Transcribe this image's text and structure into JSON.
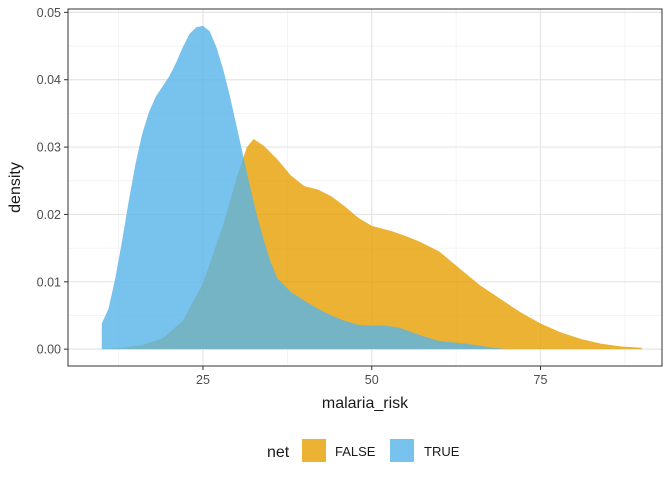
{
  "chart_data": {
    "type": "area",
    "subtype": "density",
    "xlabel": "malaria_risk",
    "ylabel": "density",
    "xlim": [
      5,
      93
    ],
    "ylim": [
      -0.0025,
      0.0505
    ],
    "x_ticks": [
      25,
      50,
      75
    ],
    "y_ticks": [
      0.0,
      0.01,
      0.02,
      0.03,
      0.04,
      0.05
    ],
    "y_tick_labels": [
      "0.00",
      "0.01",
      "0.02",
      "0.03",
      "0.04",
      "0.05"
    ],
    "grid": true,
    "legend": {
      "title": "net",
      "position": "bottom"
    },
    "series": [
      {
        "name": "FALSE",
        "color": "#E69F00",
        "opacity": 0.8,
        "points": [
          [
            10,
            0.0
          ],
          [
            13,
            0.0002
          ],
          [
            16,
            0.0006
          ],
          [
            19,
            0.0016
          ],
          [
            22,
            0.0042
          ],
          [
            25,
            0.0098
          ],
          [
            28,
            0.0185
          ],
          [
            30,
            0.0255
          ],
          [
            31.5,
            0.03
          ],
          [
            32.5,
            0.0312
          ],
          [
            34,
            0.0302
          ],
          [
            36,
            0.0282
          ],
          [
            38,
            0.0258
          ],
          [
            40,
            0.0242
          ],
          [
            42,
            0.0237
          ],
          [
            44,
            0.0227
          ],
          [
            46,
            0.0212
          ],
          [
            48,
            0.0195
          ],
          [
            50,
            0.0183
          ],
          [
            53,
            0.0175
          ],
          [
            55,
            0.0168
          ],
          [
            57,
            0.016
          ],
          [
            60,
            0.0145
          ],
          [
            63,
            0.012
          ],
          [
            66,
            0.0095
          ],
          [
            69,
            0.0075
          ],
          [
            72,
            0.0055
          ],
          [
            75,
            0.0038
          ],
          [
            78,
            0.0025
          ],
          [
            81,
            0.0015
          ],
          [
            84,
            0.0008
          ],
          [
            87,
            0.0004
          ],
          [
            90,
            0.0002
          ]
        ]
      },
      {
        "name": "TRUE",
        "color": "#56B4E9",
        "opacity": 0.8,
        "points": [
          [
            10,
            0.0038
          ],
          [
            11,
            0.006
          ],
          [
            12,
            0.0105
          ],
          [
            13,
            0.016
          ],
          [
            14,
            0.022
          ],
          [
            15,
            0.0275
          ],
          [
            16,
            0.032
          ],
          [
            17,
            0.0352
          ],
          [
            18,
            0.0375
          ],
          [
            19,
            0.039
          ],
          [
            20,
            0.0405
          ],
          [
            21,
            0.0425
          ],
          [
            22,
            0.0448
          ],
          [
            23,
            0.0468
          ],
          [
            24,
            0.0478
          ],
          [
            25,
            0.048
          ],
          [
            26,
            0.0472
          ],
          [
            27,
            0.0448
          ],
          [
            28,
            0.0415
          ],
          [
            29,
            0.0375
          ],
          [
            30,
            0.033
          ],
          [
            31,
            0.0285
          ],
          [
            32,
            0.024
          ],
          [
            33,
            0.0198
          ],
          [
            34,
            0.0162
          ],
          [
            35,
            0.013
          ],
          [
            36,
            0.0105
          ],
          [
            38,
            0.0085
          ],
          [
            40,
            0.0072
          ],
          [
            42,
            0.006
          ],
          [
            44,
            0.005
          ],
          [
            46,
            0.0042
          ],
          [
            48,
            0.0036
          ],
          [
            50,
            0.0035
          ],
          [
            52,
            0.0035
          ],
          [
            54,
            0.0032
          ],
          [
            56,
            0.0025
          ],
          [
            58,
            0.0018
          ],
          [
            60,
            0.0012
          ],
          [
            62,
            0.001
          ],
          [
            64,
            0.0008
          ],
          [
            66,
            0.0005
          ],
          [
            68,
            0.0002
          ],
          [
            70,
            0.0
          ]
        ]
      }
    ]
  }
}
